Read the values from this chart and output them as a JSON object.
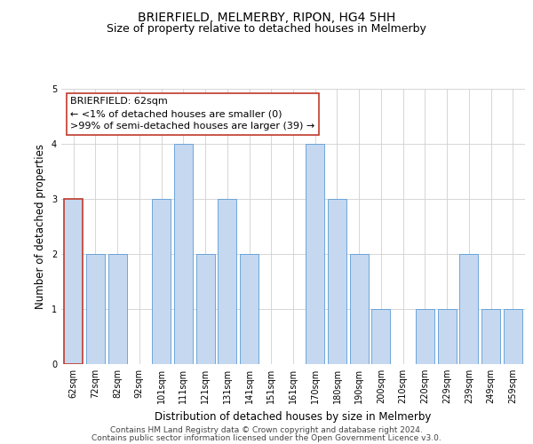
{
  "title": "BRIERFIELD, MELMERBY, RIPON, HG4 5HH",
  "subtitle": "Size of property relative to detached houses in Melmerby",
  "xlabel": "Distribution of detached houses by size in Melmerby",
  "ylabel": "Number of detached properties",
  "categories": [
    "62sqm",
    "72sqm",
    "82sqm",
    "92sqm",
    "101sqm",
    "111sqm",
    "121sqm",
    "131sqm",
    "141sqm",
    "151sqm",
    "161sqm",
    "170sqm",
    "180sqm",
    "190sqm",
    "200sqm",
    "210sqm",
    "220sqm",
    "229sqm",
    "239sqm",
    "249sqm",
    "259sqm"
  ],
  "values": [
    3,
    2,
    2,
    0,
    3,
    4,
    2,
    3,
    2,
    0,
    0,
    4,
    3,
    2,
    1,
    0,
    1,
    1,
    2,
    1,
    1
  ],
  "bar_color": "#c5d8f0",
  "bar_edge_color": "#5b9bd5",
  "highlight_index": 0,
  "highlight_bar_edge_color": "#c0392b",
  "annotation_title": "BRIERFIELD: 62sqm",
  "annotation_line1": "← <1% of detached houses are smaller (0)",
  "annotation_line2": ">99% of semi-detached houses are larger (39) →",
  "annotation_box_color": "#ffffff",
  "annotation_border_color": "#c0392b",
  "ylim": [
    0,
    5
  ],
  "yticks": [
    0,
    1,
    2,
    3,
    4,
    5
  ],
  "footer1": "Contains HM Land Registry data © Crown copyright and database right 2024.",
  "footer2": "Contains public sector information licensed under the Open Government Licence v3.0.",
  "title_fontsize": 10,
  "subtitle_fontsize": 9,
  "axis_label_fontsize": 8.5,
  "tick_fontsize": 7,
  "annotation_fontsize": 8,
  "footer_fontsize": 6.5,
  "background_color": "#ffffff",
  "grid_color": "#d0d0d0"
}
